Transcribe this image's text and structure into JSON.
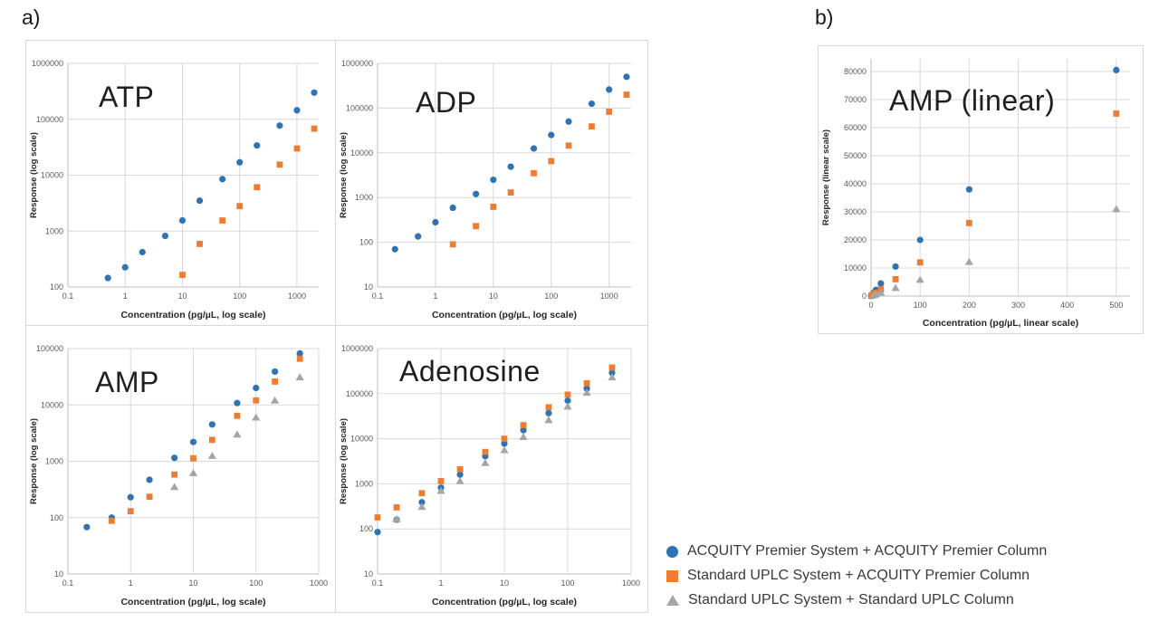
{
  "figure": {
    "panel_a_label": "a)",
    "panel_b_label": "b)"
  },
  "colors": {
    "series_blue": "#2E74B5",
    "series_orange": "#ED7D31",
    "series_gray": "#A5A5A5",
    "gridline": "#D9D9D9",
    "axis_line": "#BFBFBF",
    "tick_text": "#595959",
    "axis_title_text": "#262626"
  },
  "legend": {
    "items": [
      {
        "marker": "circle",
        "color": "#2E74B5",
        "label": "ACQUITY Premier System + ACQUITY Premier Column"
      },
      {
        "marker": "square",
        "color": "#ED7D31",
        "label": "Standard UPLC System + ACQUITY Premier Column"
      },
      {
        "marker": "triangle",
        "color": "#A5A5A5",
        "label": "Standard UPLC System + Standard UPLC Column"
      }
    ]
  },
  "chart_data": [
    {
      "id": "atp",
      "type": "scatter",
      "title": "ATP",
      "xlabel": "Concentration (pg/µL, log scale)",
      "ylabel": "Response (log scale)",
      "xscale": "log",
      "yscale": "log",
      "xlim": [
        0.1,
        2400
      ],
      "ylim": [
        100,
        1000000
      ],
      "xticks": [
        0.1,
        1,
        10,
        100,
        1000
      ],
      "yticks": [
        100,
        1000,
        10000,
        100000,
        1000000
      ],
      "grid": true,
      "legend_position": "none",
      "series": [
        {
          "name": "ACQUITY Premier System + ACQUITY Premier Column",
          "marker": "circle",
          "color": "#2E74B5",
          "points": [
            [
              0.5,
              145
            ],
            [
              1,
              225
            ],
            [
              2,
              420
            ],
            [
              5,
              820
            ],
            [
              10,
              1550
            ],
            [
              20,
              3500
            ],
            [
              50,
              8500
            ],
            [
              100,
              17000
            ],
            [
              200,
              34000
            ],
            [
              500,
              77000
            ],
            [
              1000,
              145000
            ],
            [
              2000,
              300000
            ]
          ]
        },
        {
          "name": "Standard UPLC System + ACQUITY Premier Column",
          "marker": "square",
          "color": "#ED7D31",
          "points": [
            [
              10,
              165
            ],
            [
              20,
              590
            ],
            [
              50,
              1550
            ],
            [
              100,
              2800
            ],
            [
              200,
              6100
            ],
            [
              500,
              15500
            ],
            [
              1000,
              30000
            ],
            [
              2000,
              68000
            ]
          ]
        }
      ]
    },
    {
      "id": "adp",
      "type": "scatter",
      "title": "ADP",
      "xlabel": "Concentration (pg/µL, log scale)",
      "ylabel": "Response (log scale)",
      "xscale": "log",
      "yscale": "log",
      "xlim": [
        0.1,
        2400
      ],
      "ylim": [
        10,
        1000000
      ],
      "xticks": [
        0.1,
        1,
        10,
        100,
        1000
      ],
      "yticks": [
        10,
        100,
        1000,
        10000,
        100000,
        1000000
      ],
      "grid": true,
      "legend_position": "none",
      "series": [
        {
          "name": "ACQUITY Premier System + ACQUITY Premier Column",
          "marker": "circle",
          "color": "#2E74B5",
          "points": [
            [
              0.2,
              70
            ],
            [
              0.5,
              135
            ],
            [
              1,
              280
            ],
            [
              2,
              590
            ],
            [
              5,
              1200
            ],
            [
              10,
              2500
            ],
            [
              20,
              4900
            ],
            [
              50,
              12500
            ],
            [
              100,
              25000
            ],
            [
              200,
              50000
            ],
            [
              500,
              125000
            ],
            [
              1000,
              260000
            ],
            [
              2000,
              500000
            ]
          ]
        },
        {
          "name": "Standard UPLC System + ACQUITY Premier Column",
          "marker": "square",
          "color": "#ED7D31",
          "points": [
            [
              2,
              90
            ],
            [
              5,
              230
            ],
            [
              10,
              620
            ],
            [
              20,
              1300
            ],
            [
              50,
              3500
            ],
            [
              100,
              6500
            ],
            [
              200,
              14500
            ],
            [
              500,
              39000
            ],
            [
              1000,
              83000
            ],
            [
              2000,
              200000
            ]
          ]
        }
      ]
    },
    {
      "id": "amp",
      "type": "scatter",
      "title": "AMP",
      "xlabel": "Concentration (pg/µL, log scale)",
      "ylabel": "Response (log scale)",
      "xscale": "log",
      "yscale": "log",
      "xlim": [
        0.1,
        1000
      ],
      "ylim": [
        10,
        100000
      ],
      "xticks": [
        0.1,
        1,
        10,
        100,
        1000
      ],
      "yticks": [
        10,
        100,
        1000,
        10000,
        100000
      ],
      "grid": true,
      "legend_position": "none",
      "series": [
        {
          "name": "ACQUITY Premier System + ACQUITY Premier Column",
          "marker": "circle",
          "color": "#2E74B5",
          "points": [
            [
              0.2,
              68
            ],
            [
              0.5,
              100
            ],
            [
              1,
              230
            ],
            [
              2,
              470
            ],
            [
              5,
              1150
            ],
            [
              10,
              2200
            ],
            [
              20,
              4500
            ],
            [
              50,
              10800
            ],
            [
              100,
              20000
            ],
            [
              200,
              39000
            ],
            [
              500,
              82000
            ]
          ]
        },
        {
          "name": "Standard UPLC System + ACQUITY Premier Column",
          "marker": "square",
          "color": "#ED7D31",
          "points": [
            [
              0.5,
              88
            ],
            [
              1,
              130
            ],
            [
              2,
              235
            ],
            [
              5,
              580
            ],
            [
              10,
              1130
            ],
            [
              20,
              2400
            ],
            [
              50,
              6400
            ],
            [
              100,
              12000
            ],
            [
              200,
              26000
            ],
            [
              500,
              66000
            ]
          ]
        },
        {
          "name": "Standard UPLC System + Standard UPLC Column",
          "marker": "triangle",
          "color": "#A5A5A5",
          "points": [
            [
              5,
              350
            ],
            [
              10,
              620
            ],
            [
              20,
              1250
            ],
            [
              50,
              3000
            ],
            [
              100,
              6000
            ],
            [
              200,
              12000
            ],
            [
              500,
              31000
            ]
          ]
        }
      ]
    },
    {
      "id": "adenosine",
      "type": "scatter",
      "title": "Adenosine",
      "xlabel": "Concentration (pg/µL, log scale)",
      "ylabel": "Response (log scale)",
      "xscale": "log",
      "yscale": "log",
      "xlim": [
        0.1,
        1000
      ],
      "ylim": [
        10,
        1000000
      ],
      "xticks": [
        0.1,
        1,
        10,
        100,
        1000
      ],
      "yticks": [
        10,
        100,
        1000,
        10000,
        100000,
        1000000
      ],
      "grid": true,
      "legend_position": "none",
      "series": [
        {
          "name": "ACQUITY Premier System + ACQUITY Premier Column",
          "marker": "circle",
          "color": "#2E74B5",
          "points": [
            [
              0.1,
              85
            ],
            [
              0.2,
              160
            ],
            [
              0.5,
              390
            ],
            [
              1,
              820
            ],
            [
              2,
              1600
            ],
            [
              5,
              4100
            ],
            [
              10,
              7800
            ],
            [
              20,
              15500
            ],
            [
              50,
              37000
            ],
            [
              100,
              70000
            ],
            [
              200,
              130000
            ],
            [
              500,
              290000
            ]
          ]
        },
        {
          "name": "Standard UPLC System + ACQUITY Premier Column",
          "marker": "square",
          "color": "#ED7D31",
          "points": [
            [
              0.1,
              180
            ],
            [
              0.2,
              300
            ],
            [
              0.5,
              620
            ],
            [
              1,
              1150
            ],
            [
              2,
              2100
            ],
            [
              5,
              5100
            ],
            [
              10,
              10000
            ],
            [
              20,
              20000
            ],
            [
              50,
              50000
            ],
            [
              100,
              95000
            ],
            [
              200,
              170000
            ],
            [
              500,
              380000
            ]
          ]
        },
        {
          "name": "Standard UPLC System + Standard UPLC Column",
          "marker": "triangle",
          "color": "#A5A5A5",
          "points": [
            [
              0.2,
              165
            ],
            [
              0.5,
              310
            ],
            [
              1,
              700
            ],
            [
              2,
              1150
            ],
            [
              5,
              2900
            ],
            [
              10,
              5600
            ],
            [
              20,
              11000
            ],
            [
              50,
              26000
            ],
            [
              100,
              52000
            ],
            [
              200,
              105000
            ],
            [
              500,
              230000
            ]
          ]
        }
      ]
    },
    {
      "id": "amp_linear",
      "type": "scatter",
      "title": "AMP (linear)",
      "xlabel": "Concentration (pg/µL, linear scale)",
      "ylabel": "Response (linear scale)",
      "xscale": "linear",
      "yscale": "linear",
      "xlim": [
        0,
        528
      ],
      "ylim": [
        0,
        84500
      ],
      "xticks": [
        0,
        100,
        200,
        300,
        400,
        500
      ],
      "yticks": [
        0,
        10000,
        20000,
        30000,
        40000,
        50000,
        60000,
        70000,
        80000
      ],
      "grid": true,
      "legend_position": "none",
      "series": [
        {
          "name": "ACQUITY Premier System + ACQUITY Premier Column",
          "marker": "circle",
          "color": "#2E74B5",
          "points": [
            [
              0.2,
              68
            ],
            [
              0.5,
              100
            ],
            [
              1,
              230
            ],
            [
              2,
              470
            ],
            [
              5,
              1150
            ],
            [
              10,
              2200
            ],
            [
              20,
              4500
            ],
            [
              50,
              10500
            ],
            [
              100,
              20000
            ],
            [
              200,
              38000
            ],
            [
              500,
              80500
            ]
          ]
        },
        {
          "name": "Standard UPLC System + ACQUITY Premier Column",
          "marker": "square",
          "color": "#ED7D31",
          "points": [
            [
              0.5,
              88
            ],
            [
              1,
              130
            ],
            [
              2,
              235
            ],
            [
              5,
              580
            ],
            [
              10,
              1130
            ],
            [
              20,
              2400
            ],
            [
              50,
              6000
            ],
            [
              100,
              12000
            ],
            [
              200,
              26000
            ],
            [
              500,
              65000
            ]
          ]
        },
        {
          "name": "Standard UPLC System + Standard UPLC Column",
          "marker": "triangle",
          "color": "#A5A5A5",
          "points": [
            [
              5,
              350
            ],
            [
              10,
              620
            ],
            [
              20,
              1200
            ],
            [
              50,
              2900
            ],
            [
              100,
              5800
            ],
            [
              200,
              12200
            ],
            [
              500,
              31000
            ]
          ]
        }
      ]
    }
  ]
}
